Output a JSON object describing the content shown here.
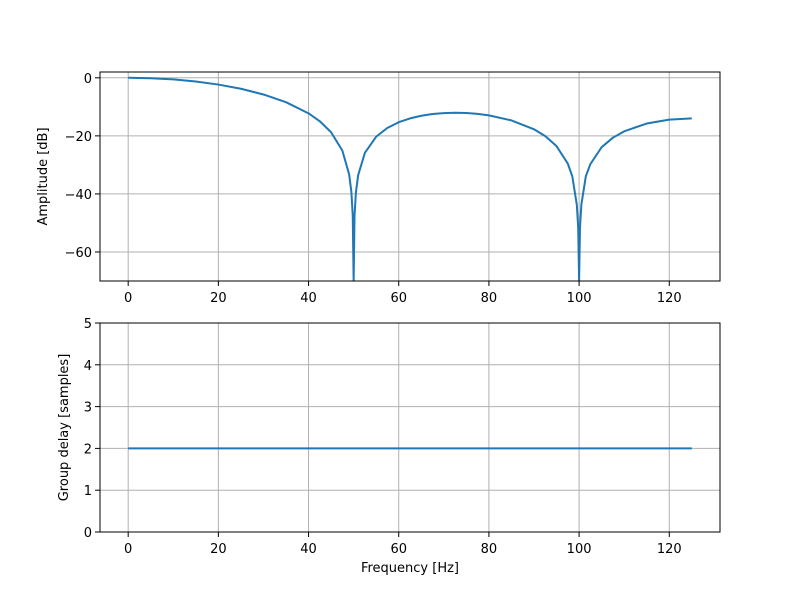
{
  "chart_data": [
    {
      "type": "line",
      "ylabel": "Amplitude [dB]",
      "x": [
        0,
        5,
        10,
        15,
        20,
        25,
        30,
        35,
        40,
        42.5,
        45,
        47.5,
        49,
        49.5,
        49.8,
        50,
        50.2,
        50.5,
        51,
        52.5,
        55,
        57.5,
        60,
        62.5,
        65,
        67.5,
        70,
        72.5,
        75,
        77.5,
        80,
        85,
        90,
        92.5,
        95,
        97.5,
        98.5,
        99.5,
        99.8,
        100,
        100.2,
        100.5,
        101.5,
        102.5,
        105,
        107.5,
        110,
        115,
        120,
        125
      ],
      "series": [
        {
          "color": "#1f77b4",
          "values": [
            0,
            -0.14,
            -0.56,
            -1.28,
            -2.33,
            -3.78,
            -5.74,
            -8.4,
            -12.25,
            -14.97,
            -18.76,
            -25.09,
            -33.25,
            -39.34,
            -47.4,
            -70,
            -47.4,
            -39.52,
            -33.55,
            -25.84,
            -20.27,
            -17.25,
            -15.3,
            -13.98,
            -13.07,
            -12.48,
            -12.15,
            -12.04,
            -12.14,
            -12.44,
            -12.95,
            -14.67,
            -17.73,
            -20.09,
            -23.55,
            -29.56,
            -33.99,
            -43.82,
            -51.56,
            -70,
            -51.6,
            -43.7,
            -33.9,
            -29.74,
            -23.9,
            -20.63,
            -18.44,
            -15.75,
            -14.4,
            -13.98
          ]
        }
      ],
      "xlim": [
        -6.25,
        131.25
      ],
      "xticks": [
        0,
        20,
        40,
        60,
        80,
        100,
        120
      ],
      "ylim": [
        -70,
        2
      ],
      "yticks": [
        0,
        {
          "value": -20,
          "label": "−20"
        },
        {
          "value": -40,
          "label": "−40"
        },
        {
          "value": -60,
          "label": "−60"
        }
      ],
      "grid": true
    },
    {
      "type": "line",
      "ylabel": "Group delay [samples]",
      "xlabel": "Frequency [Hz]",
      "x": [
        0,
        125
      ],
      "series": [
        {
          "color": "#1f77b4",
          "values": [
            2,
            2
          ]
        }
      ],
      "xlim": [
        -6.25,
        131.25
      ],
      "xticks": [
        0,
        20,
        40,
        60,
        80,
        100,
        120
      ],
      "ylim": [
        0,
        5
      ],
      "yticks": [
        0,
        1,
        2,
        3,
        4,
        5
      ],
      "grid": true
    }
  ]
}
